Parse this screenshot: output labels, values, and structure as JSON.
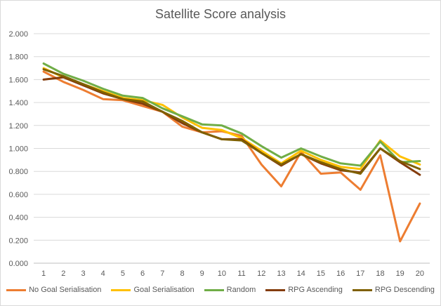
{
  "chart_data": {
    "type": "line",
    "title": "Satellite Score analysis",
    "x": [
      1,
      2,
      3,
      4,
      5,
      6,
      7,
      8,
      9,
      10,
      11,
      12,
      13,
      14,
      15,
      16,
      17,
      18,
      19,
      20
    ],
    "ylim": [
      0,
      2.0
    ],
    "yticks": [
      "0.000",
      "0.200",
      "0.400",
      "0.600",
      "0.800",
      "1.000",
      "1.200",
      "1.400",
      "1.600",
      "1.800",
      "2.000"
    ],
    "grid": true,
    "legend_position": "bottom",
    "series": [
      {
        "name": "No Goal Serialisation",
        "color": "#ED7D31",
        "values": [
          1.67,
          1.58,
          1.51,
          1.43,
          1.42,
          1.37,
          1.32,
          1.19,
          1.14,
          1.15,
          1.11,
          0.86,
          0.67,
          0.97,
          0.78,
          0.79,
          0.64,
          0.94,
          0.19,
          0.52
        ]
      },
      {
        "name": "Goal Serialisation",
        "color": "#FFC000",
        "values": [
          1.7,
          1.62,
          1.56,
          1.5,
          1.44,
          1.42,
          1.38,
          1.27,
          1.18,
          1.16,
          1.09,
          0.98,
          0.87,
          0.98,
          0.9,
          0.84,
          0.82,
          1.07,
          0.93,
          0.86
        ]
      },
      {
        "name": "Random",
        "color": "#70AD47",
        "values": [
          1.74,
          1.65,
          1.59,
          1.52,
          1.46,
          1.44,
          1.35,
          1.28,
          1.21,
          1.2,
          1.13,
          1.02,
          0.92,
          1.0,
          0.93,
          0.87,
          0.85,
          1.06,
          0.88,
          0.89
        ]
      },
      {
        "name": "RPG Ascending",
        "color": "#843C0C",
        "values": [
          1.6,
          1.62,
          1.55,
          1.48,
          1.43,
          1.39,
          1.32,
          1.22,
          1.14,
          1.08,
          1.08,
          0.96,
          0.85,
          0.95,
          0.87,
          0.81,
          0.79,
          1.0,
          0.88,
          0.77
        ]
      },
      {
        "name": "RPG Descending",
        "color": "#7F6000",
        "values": [
          1.69,
          1.63,
          1.56,
          1.49,
          1.43,
          1.41,
          1.32,
          1.24,
          1.14,
          1.08,
          1.07,
          0.96,
          0.86,
          0.95,
          0.88,
          0.82,
          0.78,
          1.0,
          0.89,
          0.82
        ]
      }
    ]
  }
}
